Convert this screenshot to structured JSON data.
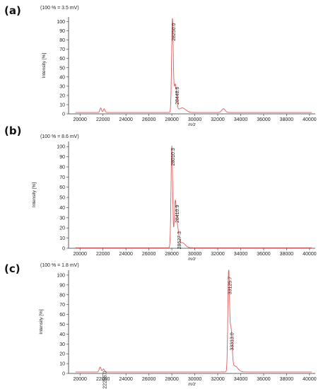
{
  "chart_data": [
    {
      "type": "line",
      "panel_label": "(a)",
      "scale_note": "(100 % = 3.5 mV)",
      "xlabel": "m/z",
      "ylabel": "Intensity [%]",
      "xlim": [
        19000,
        40500
      ],
      "ylim": [
        0,
        105
      ],
      "x_ticks": [
        20000,
        22000,
        24000,
        26000,
        28000,
        30000,
        32000,
        34000,
        36000,
        38000,
        40000
      ],
      "x_tick_labels": [
        "20000",
        "22000",
        "24000",
        "26000",
        "28000",
        "30000",
        "32000",
        "34000",
        "36000",
        "38000",
        "40000"
      ],
      "y_ticks": [
        0,
        10,
        20,
        30,
        40,
        50,
        60,
        70,
        80,
        90,
        100
      ],
      "y_tick_labels": [
        "0",
        "10",
        "20",
        "30",
        "40",
        "50",
        "60",
        "70",
        "80",
        "90",
        "100"
      ],
      "series_color": "#e05a5a",
      "baseline": 1.5,
      "peaks": [
        {
          "x": 21800,
          "y": 5,
          "width": 70
        },
        {
          "x": 22100,
          "y": 4,
          "width": 70
        },
        {
          "x": 28050,
          "y": 100,
          "width": 70
        },
        {
          "x": 28300,
          "y": 30,
          "width": 110
        },
        {
          "x": 28900,
          "y": 5,
          "width": 300
        },
        {
          "x": 32500,
          "y": 4,
          "width": 150
        }
      ],
      "peak_labels": [
        {
          "x": 28050,
          "y": 100,
          "text": "28250.0"
        },
        {
          "x": 28350,
          "y": 31,
          "text": "28448.6"
        }
      ]
    },
    {
      "type": "line",
      "panel_label": "(b)",
      "scale_note": "(100 % = 8.6 mV)",
      "xlabel": "m/z",
      "ylabel": "Intensity [%]",
      "xlim": [
        19000,
        40500
      ],
      "ylim": [
        0,
        105
      ],
      "x_ticks": [
        20000,
        22000,
        24000,
        26000,
        28000,
        30000,
        32000,
        34000,
        36000,
        38000,
        40000
      ],
      "x_tick_labels": [
        "20000",
        "22000",
        "24000",
        "26000",
        "28000",
        "30000",
        "32000",
        "34000",
        "36000",
        "38000",
        "40000"
      ],
      "y_ticks": [
        0,
        10,
        20,
        30,
        40,
        50,
        60,
        70,
        80,
        90,
        100
      ],
      "y_tick_labels": [
        "0",
        "10",
        "20",
        "30",
        "40",
        "50",
        "60",
        "70",
        "80",
        "90",
        "100"
      ],
      "series_color": "#e05a5a",
      "baseline": 0.5,
      "peaks": [
        {
          "x": 28000,
          "y": 100,
          "width": 70
        },
        {
          "x": 28300,
          "y": 43,
          "width": 90
        },
        {
          "x": 28500,
          "y": 17,
          "width": 110
        },
        {
          "x": 28900,
          "y": 5,
          "width": 250
        }
      ],
      "peak_labels": [
        {
          "x": 28000,
          "y": 100,
          "text": "28010.3"
        },
        {
          "x": 28350,
          "y": 44,
          "text": "28410.9"
        },
        {
          "x": 28550,
          "y": 18,
          "text": "28627.3"
        }
      ]
    },
    {
      "type": "line",
      "panel_label": "(c)",
      "scale_note": "(100 % = 1.8 mV)",
      "xlabel": "m/z",
      "ylabel": "Intensity [%]",
      "xlim": [
        19000,
        40500
      ],
      "ylim": [
        0,
        105
      ],
      "x_ticks": [
        20000,
        22000,
        24000,
        26000,
        28000,
        30000,
        32000,
        34000,
        36000,
        38000,
        40000
      ],
      "x_tick_labels": [
        "20000",
        "22000",
        "24000",
        "26000",
        "28000",
        "30000",
        "32000",
        "34000",
        "36000",
        "38000",
        "40000"
      ],
      "y_ticks": [
        0,
        10,
        20,
        30,
        40,
        50,
        60,
        70,
        80,
        90,
        100
      ],
      "y_tick_labels": [
        "0",
        "10",
        "20",
        "30",
        "40",
        "50",
        "60",
        "70",
        "80",
        "90",
        "100"
      ],
      "series_color": "#e05a5a",
      "baseline": 1.5,
      "peaks": [
        {
          "x": 21750,
          "y": 5,
          "width": 80
        },
        {
          "x": 22050,
          "y": 3,
          "width": 80
        },
        {
          "x": 32950,
          "y": 100,
          "width": 70
        },
        {
          "x": 33150,
          "y": 42,
          "width": 100
        },
        {
          "x": 33500,
          "y": 6,
          "width": 250
        }
      ],
      "peak_labels": [
        {
          "x": 22050,
          "y": 4,
          "text": "22255.0"
        },
        {
          "x": 32950,
          "y": 100,
          "text": "33125.7"
        },
        {
          "x": 33150,
          "y": 43,
          "text": "33313.0"
        }
      ]
    }
  ]
}
